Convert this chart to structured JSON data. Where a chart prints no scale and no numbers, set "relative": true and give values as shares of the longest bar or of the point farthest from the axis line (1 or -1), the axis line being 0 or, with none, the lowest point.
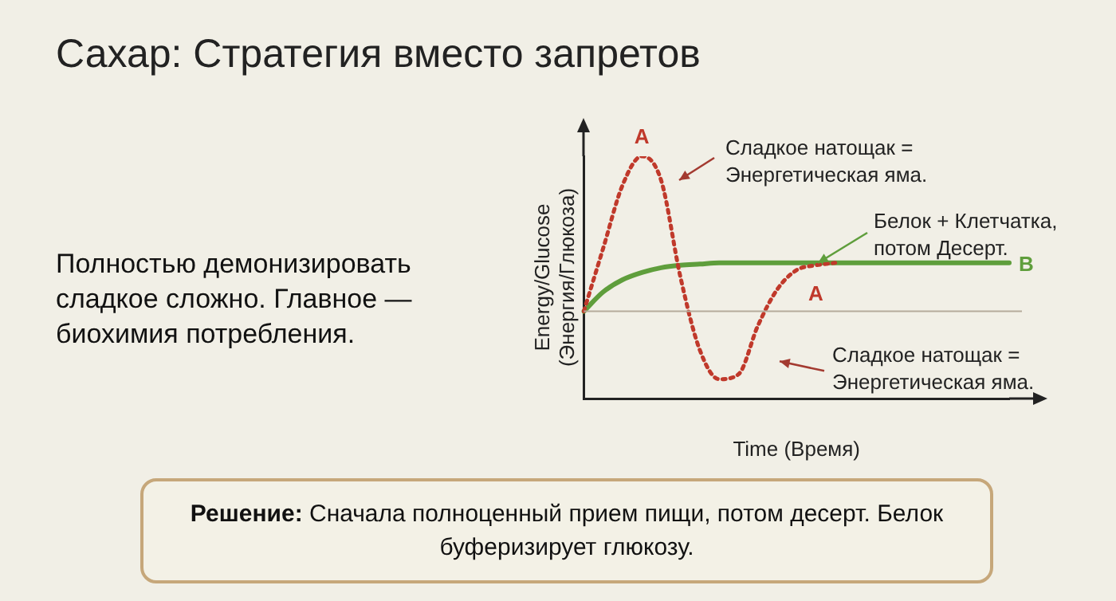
{
  "chart_data": {
    "type": "line",
    "title": "Сахар: Стратегия вместо запретов",
    "xlabel": "Time (Время)",
    "ylabel": "Energy/Glucose (Энергия/Глюкоза)",
    "relative": true,
    "legend": false,
    "grid": false,
    "marker": "none",
    "categories": [
      null,
      null,
      null,
      null,
      null,
      null,
      null,
      null,
      null,
      null,
      null,
      null,
      null,
      null,
      null,
      null,
      null,
      null,
      null,
      null,
      null,
      null,
      null
    ],
    "series": [
      {
        "name": "A",
        "color": "#c0392b",
        "line_style": "dotted",
        "values": [
          0.36,
          0.62,
          0.88,
          1.0,
          0.9,
          0.5,
          0.2,
          0.08,
          0.1,
          0.3,
          0.45,
          0.53,
          0.55,
          0.56,
          null,
          null,
          null,
          null,
          null,
          null,
          null,
          null,
          null
        ]
      },
      {
        "name": "B",
        "color": "#5f9e3c",
        "line_style": "solid",
        "values": [
          0.36,
          0.44,
          0.49,
          0.52,
          0.54,
          0.55,
          0.555,
          0.56,
          0.56,
          0.56,
          0.56,
          0.56,
          0.56,
          0.56,
          0.56,
          0.56,
          0.56,
          0.56,
          0.56,
          0.56,
          0.56,
          0.56,
          0.56
        ]
      }
    ],
    "ref_lines": [
      {
        "axis": "y",
        "value": 0.36,
        "color": "#b5ab9b"
      }
    ],
    "annotations": [
      "Сладкое натощак = Энергетическая яма.",
      "Белок + Клетчатка, потом Десерт.",
      "Сладкое натощак = Энергетическая яма.",
      "Полностью демонизировать сладкое сложно. Главное — биохимия потребления.",
      "Решение:",
      "Сначала полноценный прием пищи, потом десерт. Белок буферизирует глюкозу."
    ]
  }
}
